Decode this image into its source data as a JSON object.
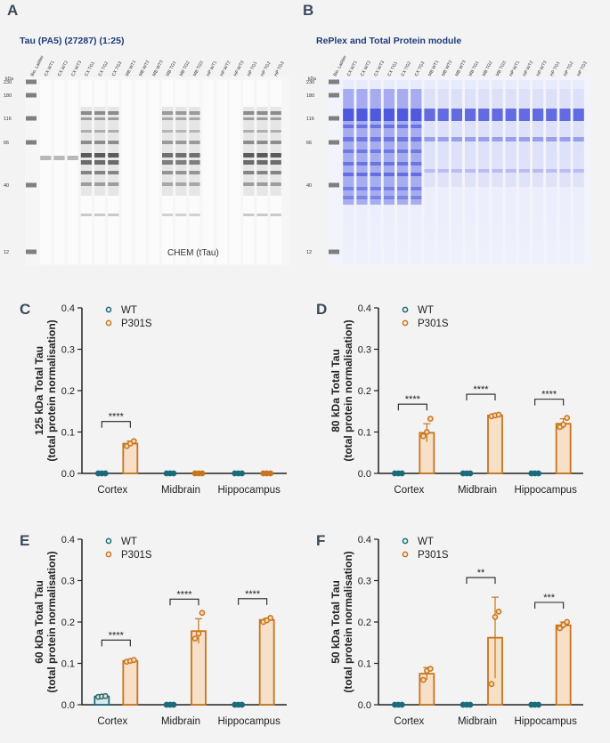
{
  "panels": {
    "a": {
      "letter": "A",
      "title": "Tau (PA5) (27287) (1:25)",
      "overlay_text": "CHEM (tTau)"
    },
    "b": {
      "letter": "B",
      "title": "RePlex and Total Protein module"
    },
    "c": {
      "letter": "C"
    },
    "d": {
      "letter": "D"
    },
    "e": {
      "letter": "E"
    },
    "f": {
      "letter": "F"
    }
  },
  "blot": {
    "kda_label": "kDa",
    "ladder_marks": [
      "230",
      "180",
      "116",
      "66",
      "40",
      "12"
    ],
    "lanes": [
      "Bio. Ladder",
      "CX WT1",
      "CX WT2",
      "CX WT3",
      "CX TG1",
      "CX TG2",
      "CX TG3",
      "MB WT1",
      "MB WT2",
      "MB WT3",
      "MB TG1",
      "MB TG2",
      "MB TG3",
      "HP WT1",
      "HP WT2",
      "HP WT3",
      "HP TG1",
      "HP TG2",
      "HP TG3"
    ]
  },
  "colors": {
    "wt": "#1a6b7c",
    "p301s": "#c8741c",
    "p301s_fill": "#f6e0c8"
  },
  "chart_data": [
    {
      "type": "bar",
      "panel": "C",
      "ylabel": "125 kDa Total Tau",
      "ylabel2": "(total protein normalisation)",
      "categories": [
        "Cortex",
        "Midbrain",
        "Hippocampus"
      ],
      "ylim": [
        0,
        0.4
      ],
      "yticks": [
        "0.0",
        "0.1",
        "0.2",
        "0.3",
        "0.4"
      ],
      "legend": [
        "WT",
        "P301S"
      ],
      "series": [
        {
          "name": "WT",
          "values": [
            0,
            0,
            0
          ],
          "points": [
            [
              0,
              0,
              0
            ],
            [
              0,
              0,
              0
            ],
            [
              0,
              0,
              0
            ]
          ],
          "err": [
            0,
            0,
            0
          ]
        },
        {
          "name": "P301S",
          "values": [
            0.072,
            0,
            0
          ],
          "points": [
            [
              0.066,
              0.072,
              0.078
            ],
            [
              0,
              0,
              0
            ],
            [
              0,
              0,
              0
            ]
          ],
          "err": [
            0.006,
            0,
            0
          ]
        }
      ],
      "significance": [
        "****",
        "",
        ""
      ]
    },
    {
      "type": "bar",
      "panel": "D",
      "ylabel": "80 kDa Total Tau",
      "ylabel2": "(total protein normalisation)",
      "categories": [
        "Cortex",
        "Midbrain",
        "Hippocampus"
      ],
      "ylim": [
        0,
        0.4
      ],
      "yticks": [
        "0.0",
        "0.1",
        "0.2",
        "0.3",
        "0.4"
      ],
      "legend": [
        "WT",
        "P301S"
      ],
      "series": [
        {
          "name": "WT",
          "values": [
            0,
            0,
            0
          ],
          "points": [
            [
              0,
              0,
              0
            ],
            [
              0,
              0,
              0
            ],
            [
              0,
              0,
              0
            ]
          ],
          "err": [
            0,
            0,
            0
          ]
        },
        {
          "name": "P301S",
          "values": [
            0.098,
            0.14,
            0.12
          ],
          "points": [
            [
              0.09,
              0.1,
              0.132
            ],
            [
              0.138,
              0.14,
              0.142
            ],
            [
              0.112,
              0.118,
              0.134
            ]
          ],
          "err": [
            0.022,
            0.004,
            0.012
          ]
        }
      ],
      "significance": [
        "****",
        "****",
        "****"
      ]
    },
    {
      "type": "bar",
      "panel": "E",
      "ylabel": "60 kDa Total Tau",
      "ylabel2": "(total protein normalisation)",
      "categories": [
        "Cortex",
        "Midbrain",
        "Hippocampus"
      ],
      "ylim": [
        0,
        0.4
      ],
      "yticks": [
        "0.0",
        "0.1",
        "0.2",
        "0.3",
        "0.4"
      ],
      "legend": [
        "WT",
        "P301S"
      ],
      "series": [
        {
          "name": "WT",
          "values": [
            0.02,
            0,
            0
          ],
          "points": [
            [
              0.019,
              0.02,
              0.021
            ],
            [
              0,
              0,
              0
            ],
            [
              0,
              0,
              0
            ]
          ],
          "err": [
            0.002,
            0,
            0
          ]
        },
        {
          "name": "P301S",
          "values": [
            0.106,
            0.178,
            0.205
          ],
          "points": [
            [
              0.104,
              0.106,
              0.108
            ],
            [
              0.16,
              0.172,
              0.222
            ],
            [
              0.2,
              0.204,
              0.21
            ]
          ],
          "err": [
            0.003,
            0.03,
            0.004
          ]
        }
      ],
      "significance": [
        "****",
        "****",
        "****"
      ]
    },
    {
      "type": "bar",
      "panel": "F",
      "ylabel": "50 kDa Total Tau",
      "ylabel2": "(total protein normalisation)",
      "categories": [
        "Cortex",
        "Midbrain",
        "Hippocampus"
      ],
      "ylim": [
        0,
        0.4
      ],
      "yticks": [
        "0.0",
        "0.1",
        "0.2",
        "0.3",
        "0.4"
      ],
      "legend": [
        "WT",
        "P301S"
      ],
      "series": [
        {
          "name": "WT",
          "values": [
            0,
            0,
            0
          ],
          "points": [
            [
              0,
              0,
              0
            ],
            [
              0,
              0,
              0
            ],
            [
              0,
              0,
              0
            ]
          ],
          "err": [
            0,
            0,
            0
          ]
        },
        {
          "name": "P301S",
          "values": [
            0.075,
            0.162,
            0.192
          ],
          "points": [
            [
              0.06,
              0.082,
              0.087
            ],
            [
              0.05,
              0.212,
              0.225
            ],
            [
              0.185,
              0.193,
              0.2
            ]
          ],
          "err": [
            0.015,
            0.098,
            0.008
          ]
        }
      ],
      "significance": [
        "",
        "**",
        "***"
      ]
    }
  ]
}
